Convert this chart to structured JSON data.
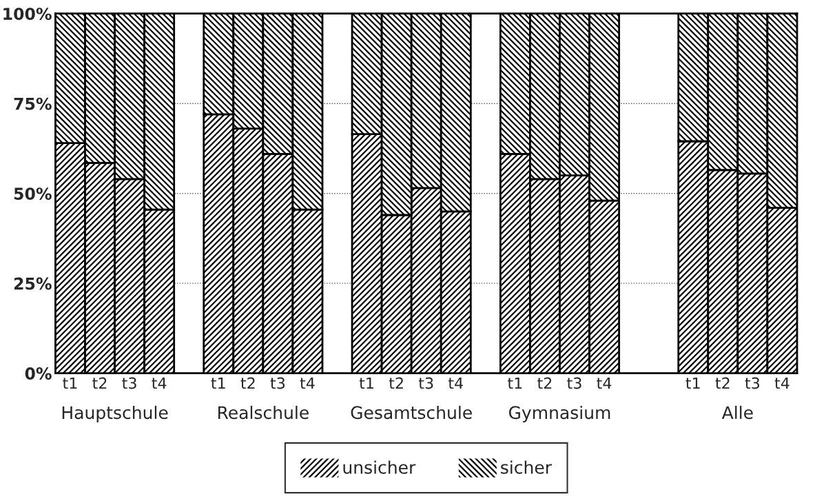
{
  "chart_data": {
    "type": "bar",
    "stacked": true,
    "categories": [
      "t1",
      "t2",
      "t3",
      "t4",
      null,
      "t1",
      "t2",
      "t3",
      "t4",
      null,
      "t1",
      "t2",
      "t3",
      "t4",
      null,
      "t1",
      "t2",
      "t3",
      "t4",
      null,
      null,
      "t1",
      "t2",
      "t3",
      "t4"
    ],
    "series": [
      {
        "name": "unsicher",
        "color": "#000000",
        "values": [
          64,
          58.5,
          54,
          45.5,
          null,
          72,
          68,
          61,
          45.5,
          null,
          66.5,
          44,
          51.5,
          45,
          null,
          61,
          54,
          55,
          48,
          null,
          null,
          64.5,
          56.5,
          55.5,
          46
        ]
      },
      {
        "name": "sicher",
        "color": "#000000",
        "values": [
          36,
          41.5,
          46,
          54.5,
          null,
          28,
          32,
          39,
          54.5,
          null,
          33.5,
          56,
          48.5,
          55,
          null,
          39,
          46,
          45,
          52,
          null,
          null,
          35.5,
          43.5,
          44.5,
          54
        ]
      }
    ],
    "ylim": [
      0,
      100
    ],
    "yticks": [
      {
        "value": 0,
        "label": "0%"
      },
      {
        "value": 25,
        "label": "25%"
      },
      {
        "value": 50,
        "label": "50%"
      },
      {
        "value": 75,
        "label": "75%"
      },
      {
        "value": 100,
        "label": "100%"
      }
    ],
    "annotations": [
      "Hauptschule",
      "Realschule",
      "Gesamtschule",
      "Gymnasium",
      "Alle"
    ],
    "grid": "y",
    "legend": "bottom"
  }
}
